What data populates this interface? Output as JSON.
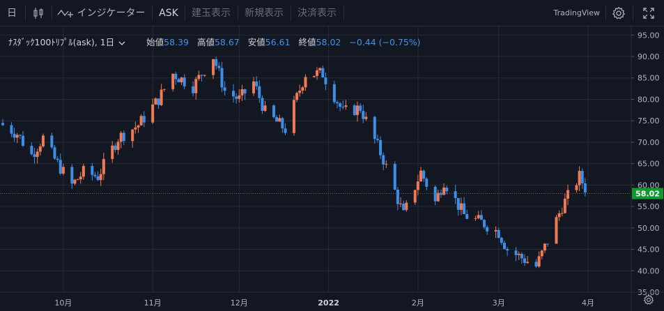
{
  "toolbar": {
    "interval_label": "日",
    "indicators_label": "インジケーター",
    "ask_label": "ASK",
    "btn_positions": "建玉表示",
    "btn_new": "新規表示",
    "btn_settle": "決済表示",
    "brand": "TradingView"
  },
  "legend": {
    "symbol": "ﾅｽﾀﾞｯｸ100ﾄﾘﾌﾟﾙ(ask), 1日",
    "open_label": "始値",
    "open": "58.39",
    "high_label": "高値",
    "high": "58.67",
    "low_label": "安値",
    "low": "56.61",
    "close_label": "終値",
    "close": "58.02",
    "change": "−0.44 (−0.75%)"
  },
  "colors": {
    "up": "#ef7a55",
    "down": "#3d8ee6",
    "bg": "#131722",
    "grid": "#262a35",
    "last_price": "#0d9b2f"
  },
  "chart_data": {
    "type": "candlestick",
    "title": "ﾅｽﾀﾞｯｸ100ﾄﾘﾌﾟﾙ(ask), 1日",
    "x_tick_labels": [
      "10月",
      "11月",
      "12月",
      "2022",
      "2月",
      "3月",
      "4月"
    ],
    "y_tick_labels": [
      "35.00",
      "40.00",
      "45.00",
      "50.00",
      "55.00",
      "60.00",
      "65.00",
      "70.00",
      "75.00",
      "80.00",
      "85.00",
      "90.00",
      "95.00"
    ],
    "ylim": [
      35,
      97
    ],
    "grid": true,
    "last_price": 58.02,
    "last_price_label": "58.02",
    "period_start": "2021-09-10",
    "period_end": "2022-04-01",
    "anchors": [
      {
        "date": "2021-09-10",
        "close": 74
      },
      {
        "date": "2021-09-15",
        "close": 72
      },
      {
        "date": "2021-09-20",
        "close": 67
      },
      {
        "date": "2021-09-24",
        "close": 71
      },
      {
        "date": "2021-09-28",
        "close": 66
      },
      {
        "date": "2021-10-04",
        "close": 60
      },
      {
        "date": "2021-10-08",
        "close": 63
      },
      {
        "date": "2021-10-13",
        "close": 62
      },
      {
        "date": "2021-10-20",
        "close": 71
      },
      {
        "date": "2021-10-27",
        "close": 74
      },
      {
        "date": "2021-11-03",
        "close": 80
      },
      {
        "date": "2021-11-08",
        "close": 86
      },
      {
        "date": "2021-11-15",
        "close": 83
      },
      {
        "date": "2021-11-22",
        "close": 90
      },
      {
        "date": "2021-11-26",
        "close": 82
      },
      {
        "date": "2021-12-01",
        "close": 80
      },
      {
        "date": "2021-12-06",
        "close": 84
      },
      {
        "date": "2021-12-10",
        "close": 77
      },
      {
        "date": "2021-12-17",
        "close": 73
      },
      {
        "date": "2021-12-24",
        "close": 86
      },
      {
        "date": "2021-12-30",
        "close": 86
      },
      {
        "date": "2022-01-06",
        "close": 77
      },
      {
        "date": "2022-01-12",
        "close": 78
      },
      {
        "date": "2022-01-20",
        "close": 66
      },
      {
        "date": "2022-01-27",
        "close": 53
      },
      {
        "date": "2022-02-02",
        "close": 63
      },
      {
        "date": "2022-02-07",
        "close": 56
      },
      {
        "date": "2022-02-10",
        "close": 61
      },
      {
        "date": "2022-02-17",
        "close": 53
      },
      {
        "date": "2022-02-24",
        "close": 51
      },
      {
        "date": "2022-03-01",
        "close": 49
      },
      {
        "date": "2022-03-04",
        "close": 45
      },
      {
        "date": "2022-03-09",
        "close": 43
      },
      {
        "date": "2022-03-14",
        "close": 41
      },
      {
        "date": "2022-03-18",
        "close": 47
      },
      {
        "date": "2022-03-23",
        "close": 55
      },
      {
        "date": "2022-03-29",
        "close": 62
      },
      {
        "date": "2022-04-01",
        "close": 58
      }
    ]
  }
}
